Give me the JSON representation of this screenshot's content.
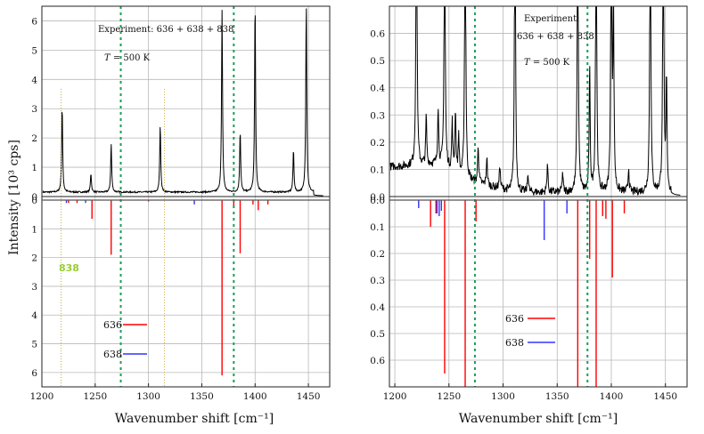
{
  "chart_data": [
    {
      "type": "line",
      "panel": "left",
      "xlabel": "Wavenumber shift [cm⁻¹]",
      "ylabel": "Intensity [10³ cps]",
      "xlim": [
        1200,
        1470
      ],
      "x_ticks": [
        "1200",
        "1250",
        "1300",
        "1350",
        "1400",
        "1450"
      ],
      "top": {
        "ylim": [
          0,
          6.5
        ],
        "y_ticks": [
          "0",
          "1",
          "2",
          "3",
          "4",
          "5",
          "6"
        ],
        "annotation_line1": "Experiment: 636 + 638 + 838",
        "annotation_T_symbol": "T",
        "annotation_T_value": " = 500 K",
        "baseline": 0.15,
        "peaks": [
          {
            "x": 1219,
            "y": 2.95
          },
          {
            "x": 1246,
            "y": 0.65
          },
          {
            "x": 1265,
            "y": 1.65
          },
          {
            "x": 1311,
            "y": 2.3
          },
          {
            "x": 1369,
            "y": 6.2
          },
          {
            "x": 1386,
            "y": 2.1
          },
          {
            "x": 1400,
            "y": 6.5
          },
          {
            "x": 1436,
            "y": 1.45
          },
          {
            "x": 1448,
            "y": 6.5
          }
        ]
      },
      "bottom": {
        "ylim": [
          0,
          6.5
        ],
        "inverted": true,
        "y_ticks": [
          "0",
          "1",
          "2",
          "3",
          "4",
          "5",
          "6"
        ],
        "series": [
          {
            "name": "636",
            "color": "#ff0000",
            "sticks": [
              {
                "x": 1225,
                "y": 0.1
              },
              {
                "x": 1233,
                "y": 0.1
              },
              {
                "x": 1247,
                "y": 0.65
              },
              {
                "x": 1265,
                "y": 1.9
              },
              {
                "x": 1300,
                "y": 0.05
              },
              {
                "x": 1369,
                "y": 6.1
              },
              {
                "x": 1380,
                "y": 0.2
              },
              {
                "x": 1386,
                "y": 1.85
              },
              {
                "x": 1398,
                "y": 0.15
              },
              {
                "x": 1403,
                "y": 0.35
              },
              {
                "x": 1412,
                "y": 0.15
              }
            ]
          },
          {
            "name": "638",
            "color": "#3333ff",
            "sticks": [
              {
                "x": 1223,
                "y": 0.1
              },
              {
                "x": 1241,
                "y": 0.1
              },
              {
                "x": 1343,
                "y": 0.15
              }
            ]
          }
        ]
      },
      "isotopologue_label": "838",
      "vlines_green_x": [
        1274,
        1380
      ],
      "vlines_olive_x": [
        1218,
        1315
      ]
    },
    {
      "type": "line",
      "panel": "right",
      "xlabel": "Wavenumber shift [cm⁻¹]",
      "xlim": [
        1195,
        1470
      ],
      "x_ticks": [
        "1200",
        "1250",
        "1300",
        "1350",
        "1400",
        "1450"
      ],
      "top": {
        "ylim": [
          0,
          0.7
        ],
        "y_ticks": [
          "0.0",
          "0.1",
          "0.2",
          "0.3",
          "0.4",
          "0.5",
          "0.6"
        ],
        "annotation_line1": "Experiment:",
        "annotation_line2": "636 + 638 + 838",
        "annotation_T_symbol": "T",
        "annotation_T_value": " = 500 K",
        "peaks": [
          {
            "x": 1220,
            "y": 0.7
          },
          {
            "x": 1246,
            "y": 0.61
          },
          {
            "x": 1265,
            "y": 0.7
          },
          {
            "x": 1311,
            "y": 0.7
          },
          {
            "x": 1369,
            "y": 0.7
          },
          {
            "x": 1380,
            "y": 0.25
          },
          {
            "x": 1386,
            "y": 0.7
          },
          {
            "x": 1400,
            "y": 0.7
          },
          {
            "x": 1402,
            "y": 0.36
          },
          {
            "x": 1436,
            "y": 0.7
          },
          {
            "x": 1448,
            "y": 0.7
          },
          {
            "x": 1451,
            "y": 0.23
          },
          {
            "x": 1229,
            "y": 0.1
          },
          {
            "x": 1240,
            "y": 0.12
          },
          {
            "x": 1253,
            "y": 0.1
          },
          {
            "x": 1256,
            "y": 0.13
          },
          {
            "x": 1259,
            "y": 0.08
          },
          {
            "x": 1277,
            "y": 0.08
          },
          {
            "x": 1285,
            "y": 0.06
          },
          {
            "x": 1341,
            "y": 0.06
          },
          {
            "x": 1297,
            "y": 0.05
          },
          {
            "x": 1323,
            "y": 0.04
          },
          {
            "x": 1355,
            "y": 0.04
          },
          {
            "x": 1416,
            "y": 0.05
          }
        ]
      },
      "bottom": {
        "ylim": [
          0,
          0.7
        ],
        "inverted": true,
        "y_ticks": [
          "0.0",
          "0.1",
          "0.2",
          "0.3",
          "0.4",
          "0.5",
          "0.6"
        ],
        "series": [
          {
            "name": "636",
            "color": "#ff0000",
            "sticks": [
              {
                "x": 1233,
                "y": 0.1
              },
              {
                "x": 1238,
                "y": 0.05
              },
              {
                "x": 1246,
                "y": 0.65
              },
              {
                "x": 1265,
                "y": 0.7
              },
              {
                "x": 1275,
                "y": 0.08
              },
              {
                "x": 1369,
                "y": 0.7
              },
              {
                "x": 1380,
                "y": 0.22
              },
              {
                "x": 1386,
                "y": 0.7
              },
              {
                "x": 1392,
                "y": 0.06
              },
              {
                "x": 1395,
                "y": 0.07
              },
              {
                "x": 1401,
                "y": 0.29
              },
              {
                "x": 1412,
                "y": 0.05
              }
            ]
          },
          {
            "name": "638",
            "color": "#3333ff",
            "sticks": [
              {
                "x": 1222,
                "y": 0.03
              },
              {
                "x": 1239,
                "y": 0.05
              },
              {
                "x": 1241,
                "y": 0.06
              },
              {
                "x": 1243,
                "y": 0.04
              },
              {
                "x": 1338,
                "y": 0.15
              },
              {
                "x": 1359,
                "y": 0.05
              }
            ]
          }
        ]
      },
      "vlines_green_x": [
        1274,
        1378
      ]
    }
  ]
}
